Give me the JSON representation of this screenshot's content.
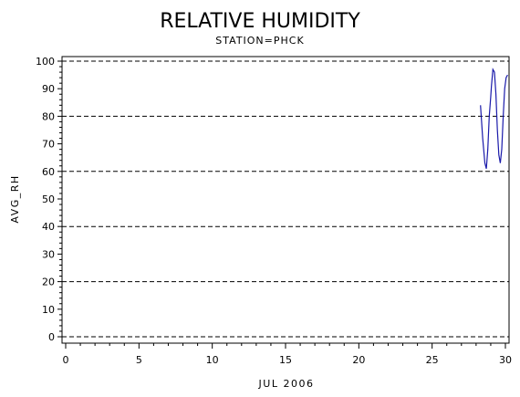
{
  "chart_data": {
    "type": "line",
    "title": "RELATIVE HUMIDITY",
    "subtitle": "STATION=PHCK",
    "xlabel": "JUL 2006",
    "ylabel": "AVG_RH",
    "xlim": [
      0,
      30
    ],
    "ylim": [
      0,
      100
    ],
    "x_ticks": [
      0,
      5,
      10,
      15,
      20,
      25,
      30
    ],
    "y_ticks": [
      0,
      10,
      20,
      30,
      40,
      50,
      60,
      70,
      80,
      90,
      100
    ],
    "grid_y": [
      0,
      20,
      40,
      60,
      80,
      100
    ],
    "series": [
      {
        "color": "#1a1aaa",
        "x": [
          28.3,
          28.45,
          28.6,
          28.7,
          28.8,
          28.9,
          29.0,
          29.05,
          29.15,
          29.25,
          29.35,
          29.45,
          29.55,
          29.65,
          29.75,
          29.85,
          29.95,
          30.05,
          30.15
        ],
        "y": [
          84,
          72,
          63,
          61,
          68,
          80,
          87,
          91,
          97,
          96,
          88,
          75,
          66,
          63,
          68,
          80,
          90,
          94,
          95
        ]
      }
    ]
  }
}
